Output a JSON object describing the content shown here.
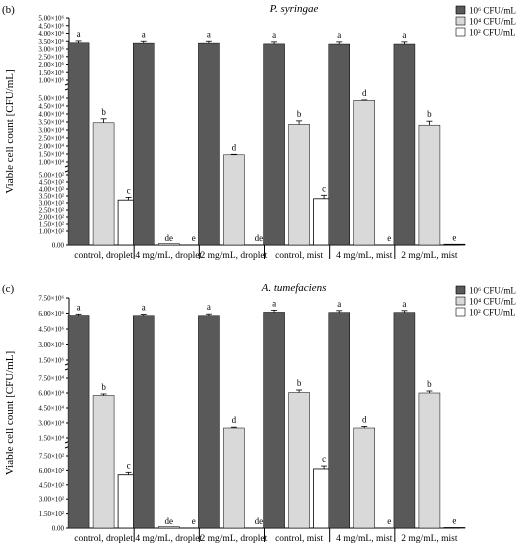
{
  "colors": {
    "series_1e6": "#595959",
    "series_1e4": "#d9d9d9",
    "series_1e2": "#ffffff",
    "outline": "#000000"
  },
  "chart_data": [
    {
      "panel": "(b)",
      "type": "bar",
      "title": "P. syringae",
      "ylabel": "Viable cell count [CFU/mL]",
      "categories": [
        "control, droplet",
        "4 mg/mL, droplet",
        "2 mg/mL, droplet",
        "control, mist",
        "4 mg/mL, mist",
        "2 mg/mL, mist"
      ],
      "legend": {
        "position": "top-right",
        "entries": [
          "10⁶ CFU/mL",
          "10⁴ CFU/mL",
          "10² CFU/mL"
        ]
      },
      "broken_axis": true,
      "segments": [
        {
          "series_index": 0,
          "ylim": [
            1000000,
            5000000
          ],
          "ticks": [
            1000000,
            1500000,
            2000000,
            2500000,
            3000000,
            3500000,
            4000000,
            4500000,
            5000000
          ],
          "tick_labels": [
            "1.00×10⁶",
            "1.50×10⁶",
            "2.00×10⁶",
            "2.50×10⁶",
            "3.00×10⁶",
            "3.50×10⁶",
            "4.00×10⁶",
            "4.50×10⁶",
            "5.00×10⁶"
          ]
        },
        {
          "series_index": 1,
          "ylim": [
            10000,
            50000
          ],
          "ticks": [
            10000,
            15000,
            20000,
            25000,
            30000,
            35000,
            40000,
            45000,
            50000
          ],
          "tick_labels": [
            "1.00×10⁴",
            "1.50×10⁴",
            "2.00×10⁴",
            "2.50×10⁴",
            "3.00×10⁴",
            "3.50×10⁴",
            "4.00×10⁴",
            "4.50×10⁴",
            "5.00×10⁴"
          ]
        },
        {
          "series_index": 2,
          "ylim": [
            0,
            500
          ],
          "ticks": [
            0,
            100,
            150,
            200,
            250,
            300,
            350,
            400,
            450,
            500
          ],
          "tick_labels": [
            "0.00",
            "1.00×10²",
            "1.50×10²",
            "2.00×10²",
            "2.50×10²",
            "3.00×10²",
            "3.50×10²",
            "4.00×10²",
            "4.50×10²",
            "5.00×10²"
          ]
        }
      ],
      "series": [
        {
          "name": "10⁶ CFU/mL",
          "values": [
            3400000,
            3380000,
            3380000,
            3330000,
            3320000,
            3320000
          ],
          "errors": [
            120000,
            120000,
            120000,
            130000,
            140000,
            140000
          ],
          "letters": [
            "a",
            "a",
            "a",
            "a",
            "a",
            "a"
          ]
        },
        {
          "name": "10⁴ CFU/mL",
          "values": [
            34500,
            8700,
            14500,
            33500,
            48500,
            33000
          ],
          "errors": [
            2500,
            200,
            300,
            2200,
            300,
            2500
          ],
          "letters": [
            "b",
            "de",
            "d",
            "b",
            "d",
            "b"
          ]
        },
        {
          "name": "10² CFU/mL",
          "values": [
            320,
            0,
            0,
            330,
            0,
            5
          ],
          "errors": [
            20,
            0,
            0,
            25,
            0,
            0
          ],
          "letters": [
            "c",
            "e",
            "de",
            "c",
            "e",
            "e"
          ]
        }
      ]
    },
    {
      "panel": "(c)",
      "type": "bar",
      "title": "A. tumefaciens",
      "ylabel": "Viable cell count [CFU/mL]",
      "categories": [
        "control, droplet",
        "4 mg/mL, droplet",
        "2 mg/mL, droplet",
        "control, mist",
        "4 mg/mL, mist",
        "2 mg/mL, mist"
      ],
      "legend": {
        "position": "top-right",
        "entries": [
          "10⁶ CFU/mL",
          "10⁴ CFU/mL",
          "10² CFU/mL"
        ]
      },
      "broken_axis": true,
      "segments": [
        {
          "series_index": 0,
          "ylim": [
            1500000,
            7500000
          ],
          "ticks": [
            1500000,
            3000000,
            4500000,
            6000000,
            7500000
          ],
          "tick_labels": [
            "1.50×10⁶",
            "3.00×10⁶",
            "4.50×10⁶",
            "6.00×10⁶",
            "7.50×10⁶"
          ]
        },
        {
          "series_index": 1,
          "ylim": [
            15000,
            75000
          ],
          "ticks": [
            15000,
            30000,
            45000,
            60000,
            75000
          ],
          "tick_labels": [
            "1.50×10⁴",
            "3.00×10⁴",
            "4.50×10⁴",
            "6.00×10⁴",
            "7.50×10⁴"
          ]
        },
        {
          "series_index": 2,
          "ylim": [
            0,
            750
          ],
          "ticks": [
            0,
            150,
            300,
            450,
            600,
            750
          ],
          "tick_labels": [
            "0.00",
            "1.50×10²",
            "3.00×10²",
            "4.50×10²",
            "6.00×10²",
            "7.50×10²"
          ]
        }
      ],
      "series": [
        {
          "name": "10⁶ CFU/mL",
          "values": [
            5800000,
            5780000,
            5780000,
            6100000,
            6080000,
            6080000
          ],
          "errors": [
            120000,
            120000,
            150000,
            200000,
            180000,
            180000
          ],
          "letters": [
            "a",
            "a",
            "a",
            "a",
            "a",
            "a"
          ]
        },
        {
          "name": "10⁴ CFU/mL",
          "values": [
            57500,
            13500,
            25000,
            60500,
            25000,
            60000
          ],
          "errors": [
            1500,
            300,
            800,
            2500,
            1500,
            2000
          ],
          "letters": [
            "b",
            "de",
            "d",
            "b",
            "d",
            "b"
          ]
        },
        {
          "name": "10² CFU/mL",
          "values": [
            555,
            0,
            0,
            615,
            0,
            5
          ],
          "errors": [
            25,
            0,
            0,
            30,
            0,
            0
          ],
          "letters": [
            "c",
            "e",
            "de",
            "c",
            "e",
            "e"
          ]
        }
      ]
    }
  ]
}
